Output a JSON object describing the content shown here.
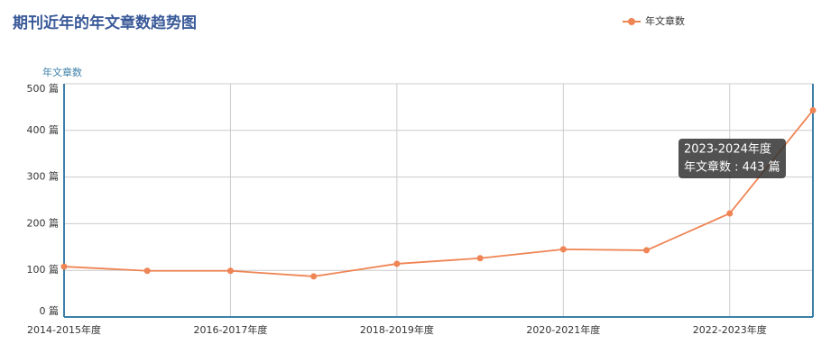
{
  "chart_data": {
    "type": "line",
    "title": "期刊近年的年文章数趋势图",
    "y_axis_label": "年文章数",
    "categories": [
      "2014-2015年度",
      null,
      "2016-2017年度",
      null,
      "2018-2019年度",
      null,
      "2020-2021年度",
      null,
      "2022-2023年度",
      null
    ],
    "series": [
      {
        "name": "年文章数",
        "color": "#ef8454",
        "values": [
          108,
          99,
          99,
          87,
          114,
          126,
          145,
          143,
          222,
          443
        ]
      }
    ],
    "ylim": [
      0,
      500
    ],
    "yticks": [
      {
        "value": 0,
        "label": "0 篇"
      },
      {
        "value": 100,
        "label": "100 篇"
      },
      {
        "value": 200,
        "label": "200 篇"
      },
      {
        "value": 300,
        "label": "300 篇"
      },
      {
        "value": 400,
        "label": "400 篇"
      },
      {
        "value": 500,
        "label": "500 篇"
      }
    ],
    "grid": true,
    "legend": "top-right",
    "tooltip": {
      "category": "2023-2024年度",
      "label": "年文章数 : 443 篇"
    }
  }
}
